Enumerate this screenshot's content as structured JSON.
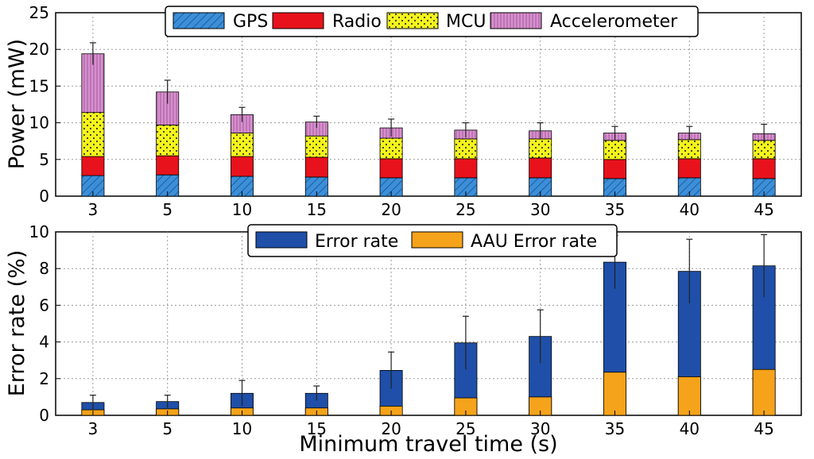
{
  "chart_data": [
    {
      "type": "bar",
      "stacked": true,
      "categories": [
        "3",
        "5",
        "10",
        "15",
        "20",
        "25",
        "30",
        "35",
        "40",
        "45"
      ],
      "ylabel": "Power (mW)",
      "xlabel": "",
      "ylim": [
        0,
        25
      ],
      "yticks": [
        "0",
        "5",
        "10",
        "15",
        "20",
        "25"
      ],
      "grid": true,
      "legend_position": "top",
      "series": [
        {
          "name": "GPS",
          "color": "#3b8fd9",
          "pattern": "diagonal-hatch",
          "values": [
            2.8,
            2.9,
            2.7,
            2.6,
            2.5,
            2.5,
            2.5,
            2.4,
            2.5,
            2.4
          ]
        },
        {
          "name": "Radio",
          "color": "#e8121c",
          "pattern": "solid",
          "values": [
            2.6,
            2.6,
            2.7,
            2.7,
            2.6,
            2.6,
            2.7,
            2.6,
            2.6,
            2.7
          ]
        },
        {
          "name": "MCU",
          "color": "#f5f51a",
          "pattern": "dots",
          "values": [
            6.0,
            4.2,
            3.2,
            2.9,
            2.8,
            2.7,
            2.6,
            2.6,
            2.6,
            2.5
          ]
        },
        {
          "name": "Accelerometer",
          "color": "#d88fce",
          "pattern": "vertical-hatch",
          "values": [
            8.0,
            4.5,
            2.5,
            1.9,
            1.4,
            1.2,
            1.1,
            1.0,
            0.9,
            0.9
          ]
        }
      ],
      "error_bars": [
        1.5,
        1.6,
        1.0,
        0.8,
        1.2,
        1.0,
        1.1,
        0.9,
        0.9,
        1.3
      ]
    },
    {
      "type": "bar",
      "stacked": false,
      "overlay": true,
      "categories": [
        "3",
        "5",
        "10",
        "15",
        "20",
        "25",
        "30",
        "35",
        "40",
        "45"
      ],
      "xlabel": "Minimum travel time (s)",
      "ylabel": "Error rate (%)",
      "ylim": [
        0,
        10
      ],
      "yticks": [
        "0",
        "2",
        "4",
        "6",
        "8",
        "10"
      ],
      "grid": true,
      "legend_position": "top",
      "series": [
        {
          "name": "Error rate",
          "color": "#1f4fa8",
          "values": [
            0.7,
            0.75,
            1.2,
            1.2,
            2.45,
            3.95,
            4.3,
            8.35,
            7.85,
            8.15
          ]
        },
        {
          "name": "AAU Error rate",
          "color": "#f5a31a",
          "values": [
            0.3,
            0.35,
            0.4,
            0.4,
            0.5,
            0.95,
            1.0,
            2.35,
            2.1,
            2.5
          ]
        }
      ],
      "error_bars": [
        0.4,
        0.35,
        0.7,
        0.4,
        1.0,
        1.45,
        1.45,
        1.45,
        1.75,
        1.7
      ]
    }
  ]
}
